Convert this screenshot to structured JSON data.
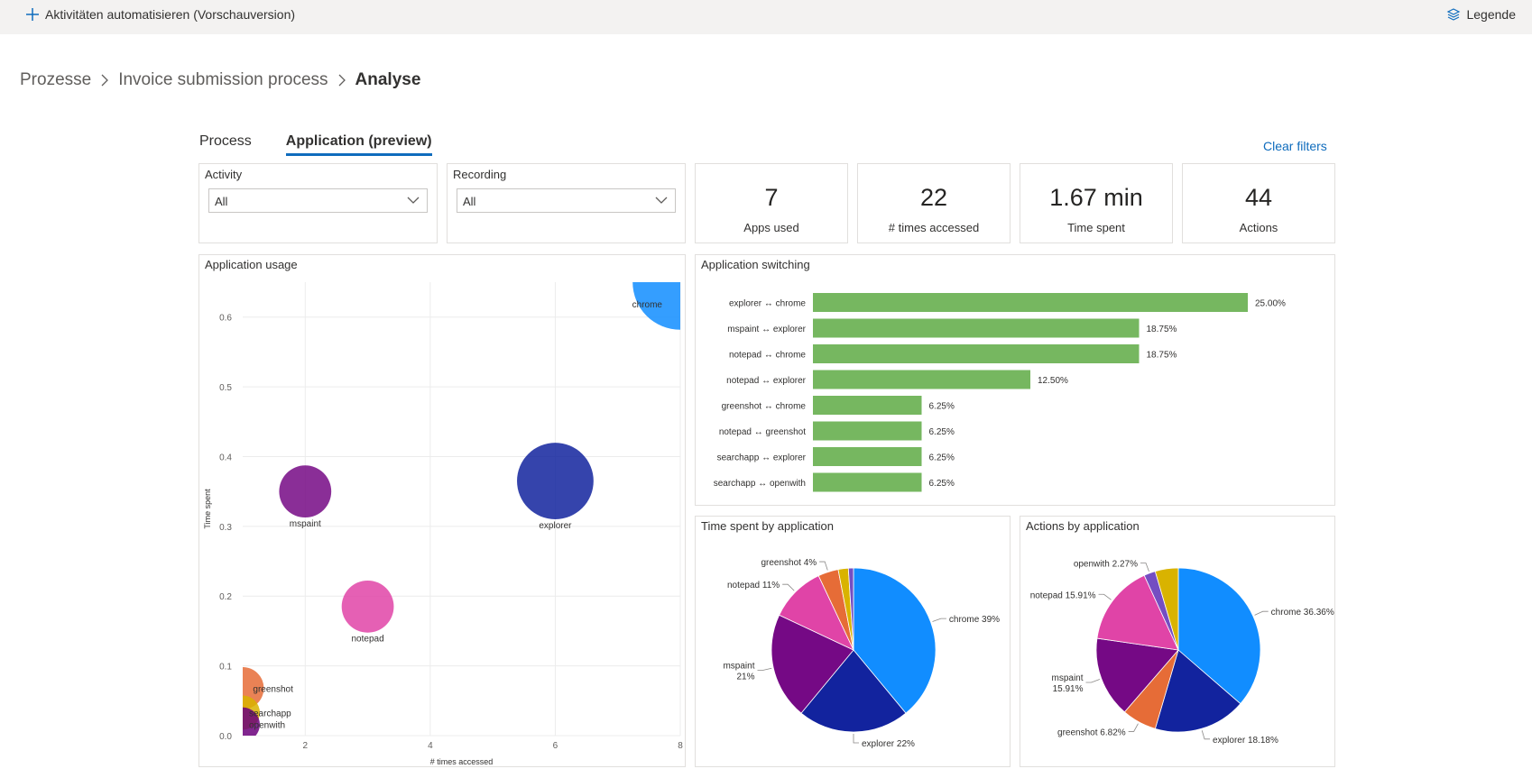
{
  "topbar": {
    "automate_label": "Aktivitäten automatisieren (Vorschauversion)",
    "legend_label": "Legende"
  },
  "breadcrumb": {
    "items": [
      "Prozesse",
      "Invoice submission process",
      "Analyse"
    ]
  },
  "tabs": [
    {
      "label": "Process",
      "active": false
    },
    {
      "label": "Application (preview)",
      "active": true
    }
  ],
  "clear_filters_label": "Clear filters",
  "filters": {
    "activity": {
      "label": "Activity",
      "value": "All"
    },
    "recording": {
      "label": "Recording",
      "value": "All"
    }
  },
  "kpis": [
    {
      "value": "7",
      "label": "Apps used"
    },
    {
      "value": "22",
      "label": "# times accessed"
    },
    {
      "value": "1.67 min",
      "label": "Time spent"
    },
    {
      "value": "44",
      "label": "Actions"
    }
  ],
  "chart_data": [
    {
      "type": "scatter",
      "title": "Application usage",
      "xlabel": "# times accessed",
      "ylabel": "Time spent",
      "xlim": [
        1,
        8
      ],
      "ylim": [
        0,
        0.65
      ],
      "xticks": [
        2,
        4,
        6,
        8
      ],
      "yticks": [
        0.0,
        0.1,
        0.2,
        0.3,
        0.4,
        0.5,
        0.6
      ],
      "points": [
        {
          "label": "chrome",
          "x": 8,
          "y": 0.65,
          "size": 44,
          "color": "#118dff"
        },
        {
          "label": "explorer",
          "x": 6,
          "y": 0.365,
          "size": 24,
          "color": "#12239e"
        },
        {
          "label": "mspaint",
          "x": 2,
          "y": 0.35,
          "size": 7,
          "color": "#750985"
        },
        {
          "label": "notepad",
          "x": 3,
          "y": 0.185,
          "size": 7,
          "color": "#e044a7"
        },
        {
          "label": "greenshot",
          "x": 1,
          "y": 0.068,
          "size": 3,
          "color": "#e66c37"
        },
        {
          "label": "searchapp",
          "x": 1,
          "y": 0.033,
          "size": 1,
          "color": "#d9b300"
        },
        {
          "label": "openwith",
          "x": 1,
          "y": 0.016,
          "size": 1,
          "color": "#6b007b"
        }
      ]
    },
    {
      "type": "bar",
      "title": "Application switching",
      "orientation": "horizontal",
      "categories": [
        "explorer ↔ chrome",
        "mspaint ↔ explorer",
        "notepad ↔ chrome",
        "notepad ↔ explorer",
        "greenshot ↔ chrome",
        "notepad ↔ greenshot",
        "searchapp ↔ explorer",
        "searchapp ↔ openwith"
      ],
      "values": [
        25.0,
        18.75,
        18.75,
        12.5,
        6.25,
        6.25,
        6.25,
        6.25
      ],
      "labels": [
        "25.00%",
        "18.75%",
        "18.75%",
        "12.50%",
        "6.25%",
        "6.25%",
        "6.25%",
        "6.25%"
      ],
      "color": "#76b760"
    },
    {
      "type": "pie",
      "title": "Time spent by application",
      "slices": [
        {
          "name": "chrome",
          "value": 39,
          "label": "chrome 39%",
          "color": "#118dff"
        },
        {
          "name": "explorer",
          "value": 22,
          "label": "explorer 22%",
          "color": "#12239e"
        },
        {
          "name": "mspaint",
          "value": 21,
          "label": "mspaint 21%",
          "color": "#750985"
        },
        {
          "name": "notepad",
          "value": 11,
          "label": "notepad 11%",
          "color": "#e044a7"
        },
        {
          "name": "greenshot",
          "value": 4,
          "label": "greenshot 4%",
          "color": "#e66c37"
        },
        {
          "name": "searchapp",
          "value": 2,
          "label": "",
          "color": "#d9b300"
        },
        {
          "name": "openwith",
          "value": 1,
          "label": "",
          "color": "#744ec2"
        }
      ]
    },
    {
      "type": "pie",
      "title": "Actions by application",
      "slices": [
        {
          "name": "chrome",
          "value": 36.36,
          "label": "chrome 36.36%",
          "color": "#118dff"
        },
        {
          "name": "explorer",
          "value": 18.18,
          "label": "explorer 18.18%",
          "color": "#12239e"
        },
        {
          "name": "greenshot",
          "value": 6.82,
          "label": "greenshot 6.82%",
          "color": "#e66c37"
        },
        {
          "name": "mspaint",
          "value": 15.91,
          "label": "mspaint 15.91%",
          "color": "#750985"
        },
        {
          "name": "notepad",
          "value": 15.91,
          "label": "notepad 15.91%",
          "color": "#e044a7"
        },
        {
          "name": "openwith",
          "value": 2.27,
          "label": "openwith 2.27%",
          "color": "#744ec2"
        },
        {
          "name": "searchapp",
          "value": 4.55,
          "label": "",
          "color": "#d9b300"
        }
      ]
    }
  ]
}
